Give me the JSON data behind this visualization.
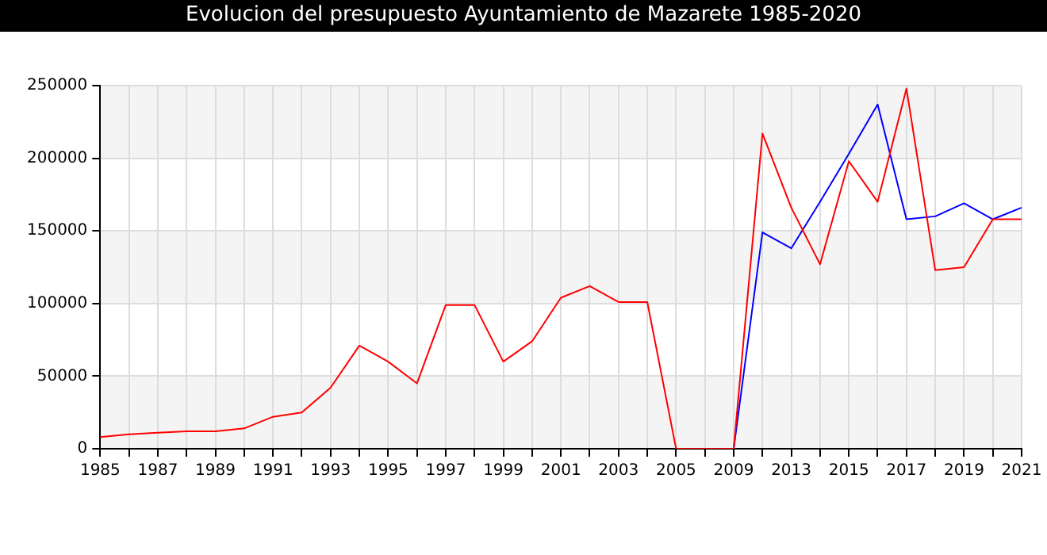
{
  "chart_data": {
    "type": "line",
    "title": "Evolucion del presupuesto Ayuntamiento de Mazarete 1985-2020",
    "categories": [
      "1985",
      null,
      "1987",
      null,
      "1989",
      null,
      "1991",
      null,
      "1993",
      null,
      "1995",
      null,
      "1997",
      null,
      "1999",
      null,
      "2001",
      null,
      "2003",
      null,
      "2005",
      null,
      "2009",
      null,
      "2013",
      null,
      "2015",
      null,
      "2017",
      null,
      "2019",
      null,
      "2021"
    ],
    "series": [
      {
        "color": "#ff0000",
        "values": [
          8000,
          10000,
          11000,
          12000,
          12000,
          14000,
          22000,
          25000,
          42000,
          71000,
          60000,
          45000,
          99000,
          99000,
          60000,
          74000,
          104000,
          112000,
          101000,
          101000,
          0,
          0,
          0,
          217000,
          166000,
          127000,
          198000,
          170000,
          248000,
          123000,
          125000,
          158000,
          158000
        ]
      },
      {
        "color": "#0000ff",
        "values": [
          null,
          null,
          null,
          null,
          null,
          null,
          null,
          null,
          null,
          null,
          null,
          null,
          null,
          null,
          null,
          null,
          null,
          null,
          null,
          null,
          null,
          null,
          0,
          149000,
          138000,
          170000,
          203000,
          237000,
          158000,
          160000,
          169000,
          158000,
          166000
        ]
      }
    ],
    "ylim": [
      0,
      250000
    ],
    "yticks": [
      0,
      50000,
      100000,
      150000,
      200000,
      250000
    ],
    "grid": true,
    "legend": false,
    "marker": "none"
  }
}
